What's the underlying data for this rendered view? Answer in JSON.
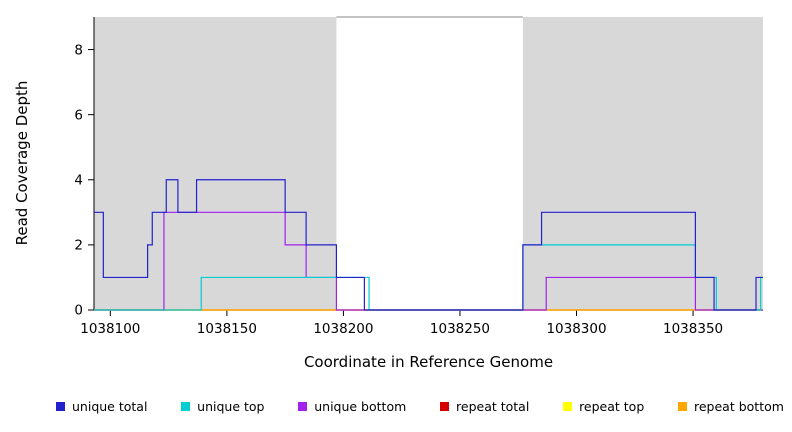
{
  "chart_data": {
    "type": "line",
    "step": "after",
    "title": "",
    "xlabel": "Coordinate in Reference Genome",
    "ylabel": "Read Coverage Depth",
    "xlim": [
      1038093,
      1038380
    ],
    "ylim": [
      0,
      9
    ],
    "x_ticks": [
      1038100,
      1038150,
      1038200,
      1038250,
      1038300,
      1038350
    ],
    "y_ticks": [
      0,
      2,
      4,
      6,
      8
    ],
    "grid": "off",
    "background_shading": {
      "color": "#d8d8d8",
      "regions": [
        [
          1038093,
          1038197
        ],
        [
          1038277,
          1038380
        ]
      ]
    },
    "series": [
      {
        "name": "repeat total",
        "color": "#d40000",
        "points": [
          [
            1038093,
            0
          ]
        ]
      },
      {
        "name": "repeat top",
        "color": "#ffff00",
        "points": [
          [
            1038093,
            0
          ]
        ]
      },
      {
        "name": "repeat bottom",
        "color": "#ffa500",
        "points": [
          [
            1038093,
            0
          ]
        ]
      },
      {
        "name": "unique bottom",
        "color": "#a020f0",
        "points": [
          [
            1038093,
            0
          ],
          [
            1038123,
            3
          ],
          [
            1038175,
            2
          ],
          [
            1038184,
            1
          ],
          [
            1038197,
            0
          ],
          [
            1038287,
            1
          ],
          [
            1038351,
            0
          ]
        ]
      },
      {
        "name": "unique top",
        "color": "#00ced1",
        "points": [
          [
            1038093,
            0
          ],
          [
            1038139,
            1
          ],
          [
            1038211,
            0
          ],
          [
            1038277,
            2
          ],
          [
            1038351,
            1
          ],
          [
            1038360,
            0
          ],
          [
            1038379,
            1
          ]
        ]
      },
      {
        "name": "unique total",
        "color": "#2222cc",
        "points": [
          [
            1038093,
            3
          ],
          [
            1038097,
            1
          ],
          [
            1038116,
            2
          ],
          [
            1038118,
            3
          ],
          [
            1038124,
            4
          ],
          [
            1038129,
            3
          ],
          [
            1038137,
            4
          ],
          [
            1038175,
            3
          ],
          [
            1038184,
            2
          ],
          [
            1038197,
            1
          ],
          [
            1038209,
            0
          ],
          [
            1038277,
            2
          ],
          [
            1038285,
            3
          ],
          [
            1038351,
            1
          ],
          [
            1038359,
            0
          ],
          [
            1038377,
            1
          ]
        ]
      }
    ],
    "legend": [
      {
        "label": "unique total",
        "color": "#2222cc"
      },
      {
        "label": "unique top",
        "color": "#00ced1"
      },
      {
        "label": "unique bottom",
        "color": "#a020f0"
      },
      {
        "label": "repeat total",
        "color": "#d40000"
      },
      {
        "label": "repeat top",
        "color": "#ffff00"
      },
      {
        "label": "repeat bottom",
        "color": "#ffa500"
      }
    ],
    "legend_position": "bottom"
  }
}
